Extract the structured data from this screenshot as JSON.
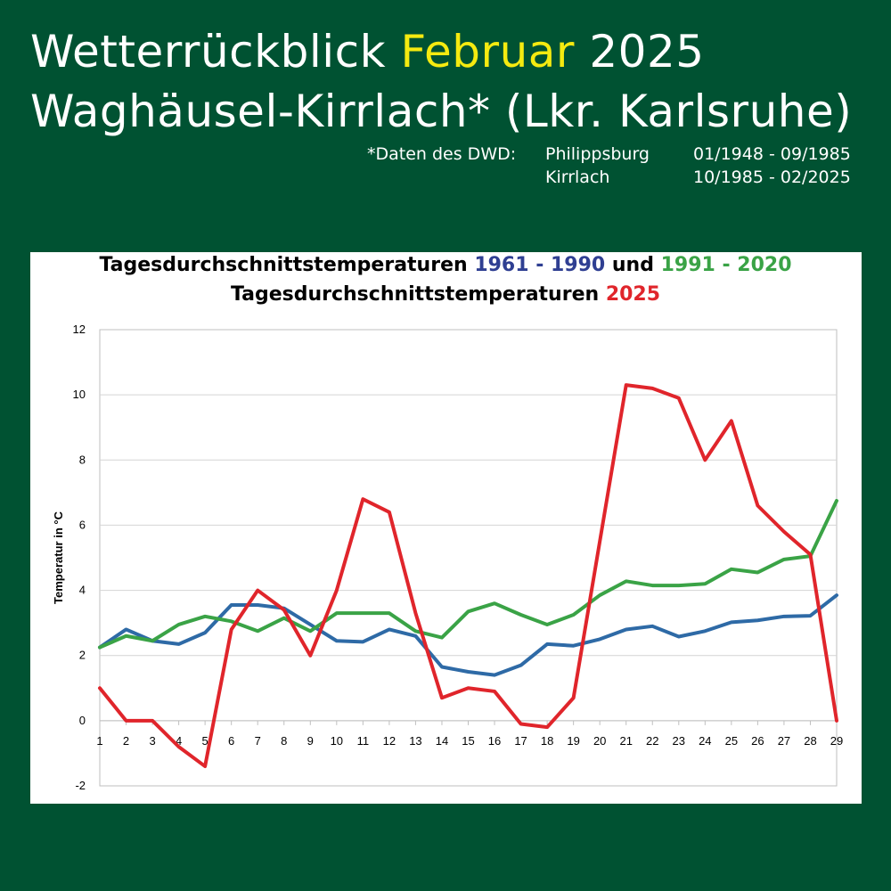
{
  "header": {
    "title_part1": "Wetterrückblick",
    "title_highlight": "Februar",
    "title_part2": "2025",
    "subtitle": "Waghäusel-Kirrlach* (Lkr. Karlsruhe)",
    "source_label": "*Daten des DWD:",
    "sources": [
      {
        "station": "Philippsburg",
        "period": "01/1948 - 09/1985"
      },
      {
        "station": "Kirrlach",
        "period": "10/1985 - 02/2025"
      }
    ]
  },
  "colors": {
    "background": "#005232",
    "highlight": "#f5ea10",
    "series_1961_1990": "#2e6aa6",
    "series_1991_2020": "#3aa346",
    "series_2025": "#e0252b",
    "title_1961_1990": "#2f3f92",
    "title_1991_2020": "#3aa346",
    "title_2025": "#e0252b"
  },
  "chart_data": {
    "type": "line",
    "title_line1": {
      "prefix": "Tagesdurchschnittstemperaturen ",
      "range1": "1961 - 1990",
      "middle": " und ",
      "range2": "1991 - 2020"
    },
    "title_line2": {
      "prefix": "Tagesdurchschnittstemperaturen ",
      "year": "2025"
    },
    "ylabel": "Temperatur in °C",
    "xlabel": "",
    "ylim": [
      -2,
      12
    ],
    "yticks": [
      -2,
      0,
      2,
      4,
      6,
      8,
      10,
      12
    ],
    "x": [
      1,
      2,
      3,
      4,
      5,
      6,
      7,
      8,
      9,
      10,
      11,
      12,
      13,
      14,
      15,
      16,
      17,
      18,
      19,
      20,
      21,
      22,
      23,
      24,
      25,
      26,
      27,
      28,
      29
    ],
    "grid": true,
    "legend": "none",
    "series": [
      {
        "key": "s1961",
        "color": "#2e6aa6",
        "values": [
          2.25,
          2.8,
          2.45,
          2.35,
          2.7,
          3.55,
          3.55,
          3.45,
          2.95,
          2.45,
          2.42,
          2.8,
          2.6,
          1.65,
          1.5,
          1.4,
          1.7,
          2.35,
          2.3,
          2.5,
          2.8,
          2.9,
          2.58,
          2.75,
          3.02,
          3.08,
          3.2,
          3.22,
          3.85
        ]
      },
      {
        "key": "s1991",
        "color": "#3aa346",
        "values": [
          2.25,
          2.6,
          2.45,
          2.95,
          3.2,
          3.05,
          2.75,
          3.15,
          2.75,
          3.3,
          3.3,
          3.3,
          2.75,
          2.55,
          3.35,
          3.6,
          3.25,
          2.95,
          3.25,
          3.85,
          4.28,
          4.15,
          4.15,
          4.2,
          4.65,
          4.55,
          4.95,
          5.05,
          6.75
        ]
      },
      {
        "key": "s2025",
        "color": "#e0252b",
        "values": [
          1.0,
          0.0,
          0.0,
          -0.8,
          -1.4,
          2.8,
          4.0,
          3.4,
          2.0,
          4.0,
          6.8,
          6.4,
          3.3,
          0.7,
          1.0,
          0.9,
          -0.1,
          -0.2,
          0.7,
          5.5,
          10.3,
          10.2,
          9.9,
          8.0,
          9.2,
          6.6,
          5.8,
          5.1,
          0.0
        ]
      }
    ]
  }
}
